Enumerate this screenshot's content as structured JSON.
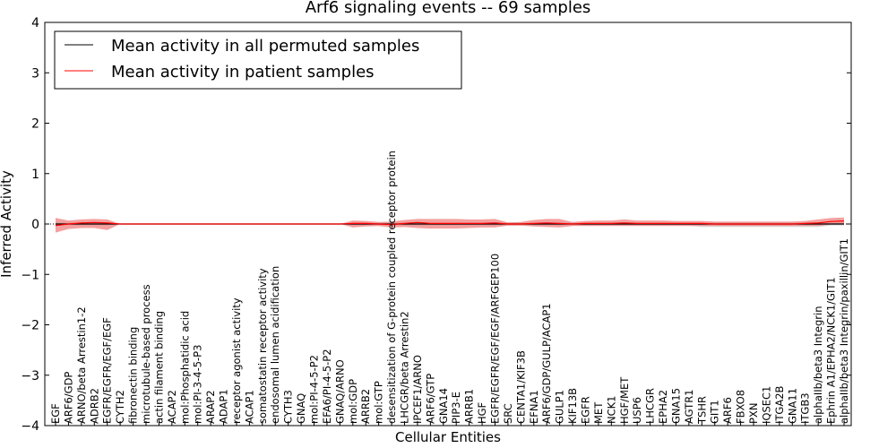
{
  "chart_data": {
    "type": "line",
    "title": "Arf6 signaling events -- 69 samples",
    "xlabel": "Cellular Entities",
    "ylabel": "Inferred Activity",
    "ylim": [
      -4,
      4
    ],
    "yticks": [
      "−4",
      "−3",
      "−2",
      "−1",
      "0",
      "1",
      "2",
      "3",
      "4"
    ],
    "ytick_values": [
      -4,
      -3,
      -2,
      -1,
      0,
      1,
      2,
      3,
      4
    ],
    "legend": {
      "placement": "top-left",
      "entries": [
        {
          "label": "Mean activity in all permuted samples",
          "color": "#000000"
        },
        {
          "label": "Mean activity in patient samples",
          "color": "#ff0000"
        }
      ]
    },
    "band_color": "#f08080",
    "categories": [
      "EGF",
      "ARF6/GDP",
      "ARNO/beta Arrestin1-2",
      "ADRB2",
      "EGFR/EGFR/EGF/EGF",
      "CYTH2",
      "fibronectin binding",
      "microtubule-based process",
      "actin filament binding",
      "ACAP2",
      "mol:Phosphatidic acid",
      "mol:PI-3-4-5-P3",
      "ARAP2",
      "ADAP1",
      "receptor agonist activity",
      "ACAP1",
      "somatostatin receptor activity",
      "endosomal lumen acidification",
      "CYTH3",
      "GNAQ",
      "mol:PI-4-5-P2",
      "EFA6/PI-4-5-P2",
      "GNAQ/ARNO",
      "mol:GDP",
      "ARRB2",
      "mol:GTP",
      "desensitization of G-protein coupled receptor protein",
      "LHCGR/beta Arrestin2",
      "IPCEF1/ARNO",
      "ARF6/GTP",
      "GNA14",
      "PIP3-E",
      "ARRB1",
      "HGF",
      "EGFR/EGFR/EGF/EGF/ARFGEP100",
      "SRC",
      "CENTA1/KIF3B",
      "EFNA1",
      "ARF6/GDP/GULP/ACAP1",
      "GULP1",
      "KIF13B",
      "EGFR",
      "MET",
      "NCK1",
      "HGF/MET",
      "USP6",
      "LHCGR",
      "EPHA2",
      "GNA15",
      "AGTR1",
      "TSHR",
      "GIT1",
      "ARF6",
      "FBXO8",
      "PXN",
      "IQSEC1",
      "ITGA2B",
      "GNA11",
      "ITGB3",
      "alphaIIb/beta3 Integrin",
      "Ephrin A1/EPHA2/NCK1/GIT1",
      "alphaIIb/beta3 Integrin/paxillin/GIT1"
    ],
    "series": [
      {
        "name": "Mean activity in all permuted samples",
        "values": [
          0,
          0,
          0,
          0,
          0,
          0,
          0,
          0,
          0,
          0,
          0,
          0,
          0,
          0,
          0,
          0,
          0,
          0,
          0,
          0,
          0,
          0,
          0,
          0,
          0,
          0,
          0,
          0,
          0,
          0,
          0,
          0,
          0,
          0,
          0,
          0,
          0,
          0,
          0,
          0,
          0,
          0,
          0,
          0,
          0,
          0,
          0,
          0,
          0,
          0,
          0,
          0,
          0,
          0,
          0,
          0,
          0,
          0,
          0,
          0,
          0,
          0
        ]
      },
      {
        "name": "Mean activity in patient samples",
        "values": [
          -0.03,
          0.0,
          0.02,
          0.03,
          0.02,
          0,
          0,
          0,
          0,
          0,
          0,
          0,
          0,
          0,
          0,
          0,
          0,
          0,
          0,
          0,
          0,
          0,
          0,
          0.01,
          0.01,
          0.0,
          -0.01,
          0.01,
          0.03,
          0.01,
          0.01,
          0.01,
          0.01,
          0.01,
          0.02,
          0.0,
          0.0,
          0.01,
          0.02,
          0.01,
          0.0,
          0.01,
          0.01,
          0.01,
          0.02,
          0.01,
          0.01,
          0.01,
          0.01,
          0.01,
          0.01,
          0.0,
          0.0,
          0.0,
          0.0,
          0.0,
          0.0,
          0.0,
          0.01,
          0.02,
          0.05,
          0.06
        ],
        "upper": [
          0.12,
          0.07,
          0.09,
          0.1,
          0.09,
          0,
          0,
          0,
          0,
          0,
          0,
          0,
          0,
          0,
          0,
          0,
          0,
          0,
          0,
          0,
          0,
          0,
          0,
          0.07,
          0.06,
          0.04,
          0.05,
          0.08,
          0.1,
          0.1,
          0.1,
          0.1,
          0.09,
          0.09,
          0.1,
          0.03,
          0.04,
          0.08,
          0.1,
          0.1,
          0.04,
          0.06,
          0.07,
          0.07,
          0.09,
          0.07,
          0.07,
          0.07,
          0.06,
          0.06,
          0.06,
          0.05,
          0.05,
          0.05,
          0.05,
          0.05,
          0.05,
          0.05,
          0.06,
          0.09,
          0.12,
          0.13
        ],
        "lower": [
          -0.17,
          -0.1,
          -0.08,
          -0.08,
          -0.12,
          0,
          0,
          0,
          0,
          0,
          0,
          0,
          0,
          0,
          0,
          0,
          0,
          0,
          0,
          0,
          0,
          0,
          0,
          -0.07,
          -0.05,
          -0.04,
          -0.07,
          -0.06,
          -0.08,
          -0.09,
          -0.09,
          -0.09,
          -0.08,
          -0.07,
          -0.07,
          -0.03,
          -0.03,
          -0.05,
          -0.06,
          -0.07,
          -0.04,
          -0.04,
          -0.04,
          -0.04,
          -0.04,
          -0.04,
          -0.04,
          -0.04,
          -0.04,
          -0.04,
          -0.04,
          -0.04,
          -0.04,
          -0.04,
          -0.04,
          -0.04,
          -0.04,
          -0.04,
          -0.04,
          -0.04,
          -0.01,
          -0.01
        ]
      }
    ],
    "permuted_band": {
      "upper": [
        0.03,
        0.03,
        0.03,
        0.03,
        0.03,
        0,
        0,
        0,
        0,
        0,
        0,
        0,
        0,
        0,
        0,
        0,
        0,
        0,
        0,
        0,
        0,
        0,
        0,
        0.03,
        0.03,
        0.03,
        0.03,
        0.03,
        0.03,
        0.03,
        0.03,
        0.03,
        0.03,
        0.03,
        0.03,
        0.03,
        0.03,
        0.03,
        0.03,
        0.03,
        0.03,
        0.03,
        0.03,
        0.03,
        0.03,
        0.03,
        0.03,
        0.03,
        0.03,
        0.03,
        0.03,
        0.03,
        0.03,
        0.03,
        0.03,
        0.03,
        0.03,
        0.03,
        0.03,
        0.03,
        0.03,
        0.03
      ],
      "lower": [
        -0.03,
        -0.03,
        -0.03,
        -0.03,
        -0.03,
        0,
        0,
        0,
        0,
        0,
        0,
        0,
        0,
        0,
        0,
        0,
        0,
        0,
        0,
        0,
        0,
        0,
        0,
        -0.03,
        -0.03,
        -0.03,
        -0.03,
        -0.03,
        -0.03,
        -0.03,
        -0.03,
        -0.03,
        -0.03,
        -0.03,
        -0.03,
        -0.03,
        -0.03,
        -0.03,
        -0.03,
        -0.03,
        -0.03,
        -0.03,
        -0.03,
        -0.03,
        -0.03,
        -0.03,
        -0.03,
        -0.03,
        -0.03,
        -0.03,
        -0.06,
        -0.06,
        -0.06,
        -0.06,
        -0.06,
        -0.06,
        -0.06,
        -0.06,
        -0.06,
        -0.06,
        -0.03,
        -0.03
      ]
    }
  }
}
